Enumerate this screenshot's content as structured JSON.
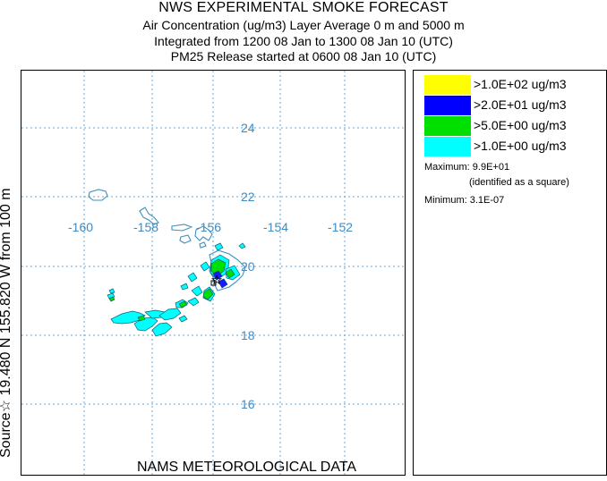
{
  "header": {
    "title": "NWS EXPERIMENTAL SMOKE FORECAST",
    "line2": "Air Concentration (ug/m3) Layer Average    0 m and  5000 m",
    "line3": "Integrated from 1200 08 Jan to 1300 08 Jan 10 (UTC)",
    "line4": "PM25 Release started at 0600 08 Jan 10 (UTC)"
  },
  "side_label": "Source☆ 19.480 N 155.820  W     from  100 m",
  "bottom_label": "NAMS METEOROLOGICAL DATA",
  "map": {
    "lon_labels": [
      "-160",
      "-158",
      "-156",
      "-154",
      "-152"
    ],
    "lat_labels": [
      "24",
      "22",
      "20",
      "18",
      "16"
    ],
    "gridline_color": "#6aa7d6",
    "coast_color": "#3e8fbf"
  },
  "legend": {
    "items": [
      {
        "label": ">1.0E+02 ug/m3",
        "color": "#ffff00"
      },
      {
        "label": ">2.0E+01 ug/m3",
        "color": "#0000ff"
      },
      {
        "label": ">5.0E+00 ug/m3",
        "color": "#00e000"
      },
      {
        "label": ">1.0E+00 ug/m3",
        "color": "#00ffff"
      }
    ],
    "maximum": "Maximum: 9.9E+01",
    "identified": "(identified as a square)",
    "minimum": "Minimum: 3.1E-07"
  }
}
